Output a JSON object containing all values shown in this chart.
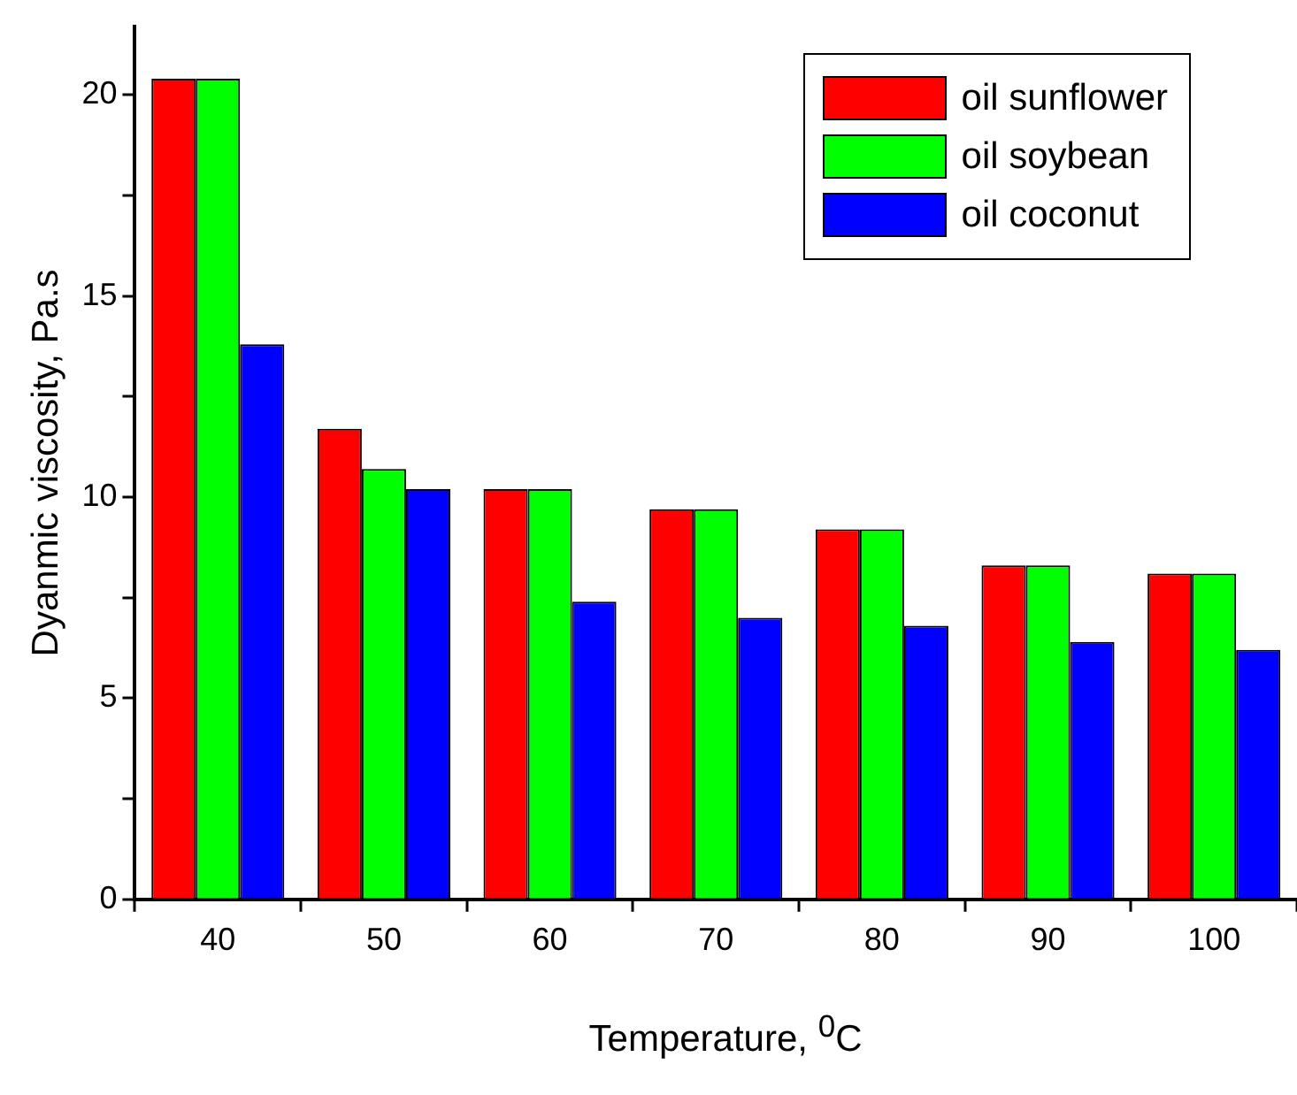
{
  "chart_data": {
    "type": "bar",
    "xlabel": "Temperature, $^{0}$C",
    "ylabel": "Dyanmic viscosity, Pa.s",
    "categories": [
      "40",
      "50",
      "60",
      "70",
      "80",
      "90",
      "100"
    ],
    "series": [
      {
        "name": "oil sunflower",
        "color": "#ff0000",
        "values": [
          20.4,
          11.7,
          10.2,
          9.7,
          9.2,
          8.3,
          8.1
        ]
      },
      {
        "name": "oil soybean",
        "color": "#00ff00",
        "values": [
          20.4,
          10.7,
          10.2,
          9.7,
          9.2,
          8.3,
          8.1
        ]
      },
      {
        "name": "oil coconut",
        "color": "#0000ff",
        "values": [
          13.8,
          10.2,
          7.4,
          7.0,
          6.8,
          6.4,
          6.2
        ]
      }
    ],
    "ylim": [
      0,
      21.7
    ],
    "yticks": [
      0,
      {
        "value": 2.5,
        "label": null
      },
      5,
      {
        "value": 7.5,
        "label": null
      },
      10,
      {
        "value": 12.5,
        "label": null
      },
      15,
      {
        "value": 17.5,
        "label": null
      },
      20
    ],
    "grid": false,
    "legend": "top right"
  }
}
